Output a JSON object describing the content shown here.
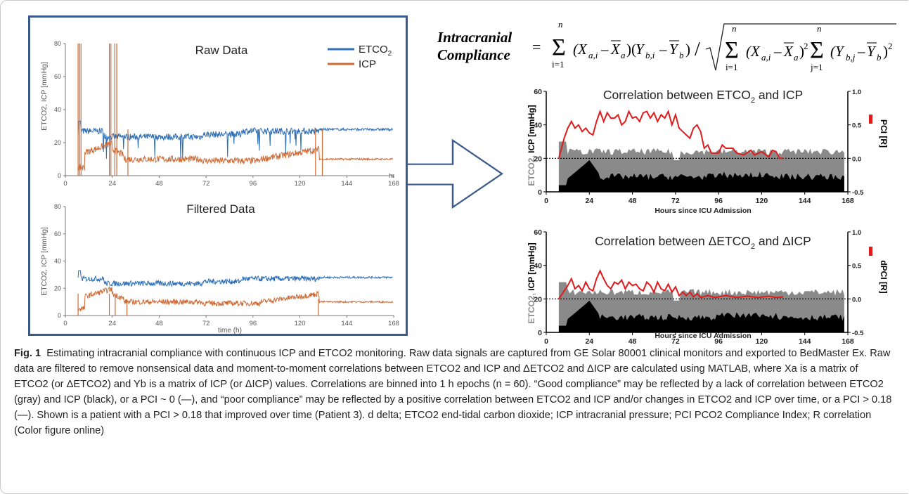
{
  "panel_left": {
    "raw_title": "Raw Data",
    "filtered_title": "Filtered Data",
    "legend": [
      {
        "label": "ETCO",
        "sub": "2",
        "color": "#2f6fb5"
      },
      {
        "label": "ICP",
        "sub": "",
        "color": "#d06a35"
      }
    ],
    "ylabel": "ETCO2, ICP [mmHg]",
    "yticks": [
      "0",
      "20",
      "40",
      "60",
      "80"
    ],
    "xticks": [
      "0",
      "24",
      "48",
      "72",
      "96",
      "120",
      "144",
      "168"
    ],
    "raw_xunit": "hr",
    "filtered_xlabel": "time (h)"
  },
  "formula": {
    "lhs_line1": "Intracranial",
    "lhs_line2": "Compliance",
    "eq": "="
  },
  "panel_right": {
    "top_title": "Correlation between ETCO",
    "top_title_mid": " and ICP",
    "bottom_title": "Correlation between ΔETCO",
    "bottom_title_mid": " and ΔICP",
    "ylabel_left_etco": "ETCO2, ",
    "ylabel_left_icp": "ICP [mmHg]",
    "ylabel_right_top": "PCI [R]",
    "ylabel_right_bottom": "dPCI [R]",
    "xlabel": "Hours since ICU Admission",
    "yticks_left": [
      "0",
      "20",
      "40",
      "60"
    ],
    "yticks_right": [
      "-0.5",
      "0.0",
      "0.5",
      "1.0"
    ],
    "xticks": [
      "0",
      "24",
      "48",
      "72",
      "96",
      "120",
      "144",
      "168"
    ]
  },
  "caption": {
    "fig_label": "Fig. 1",
    "text": "Estimating intracranial compliance with continuous ICP and ETCO2 monitoring. Raw data signals are captured from GE Solar 80001 clinical monitors and exported to BedMaster Ex. Raw data are filtered to remove nonsensical data and moment-to-moment correlations between ETCO2 and ICP and ΔETCO2 and ΔICP are calculated using MATLAB, where Xa is a matrix of ETCO2 (or ΔETCO2) and Yb is a matrix of ICP (or ΔICP) values. Correlations are binned into 1 h epochs (n = 60). “Good compliance” may be reflected by a lack of correlation between ETCO2 (gray) and ICP (black), or a PCI ~ 0 (—), and “poor compliance” may be reflected by a positive correlation between ETCO2 and ICP and/or changes in ETCO2 and ICP over time, or a PCI > 0.18 (—). Shown is a patient with a PCI > 0.18 that improved over time (Patient 3). d delta; ETCO2 end-tidal carbon dioxide; ICP intracranial pressure; PCI PCO2 Compliance Index; R correlation (Color figure online)"
  },
  "colors": {
    "etco2_line": "#2f6fb5",
    "icp_line": "#d06a35",
    "etco2_area": "#8a8a8a",
    "icp_area": "#000000",
    "pci_line": "#e01b1b",
    "frame_blue": "#3a5a8e"
  }
}
